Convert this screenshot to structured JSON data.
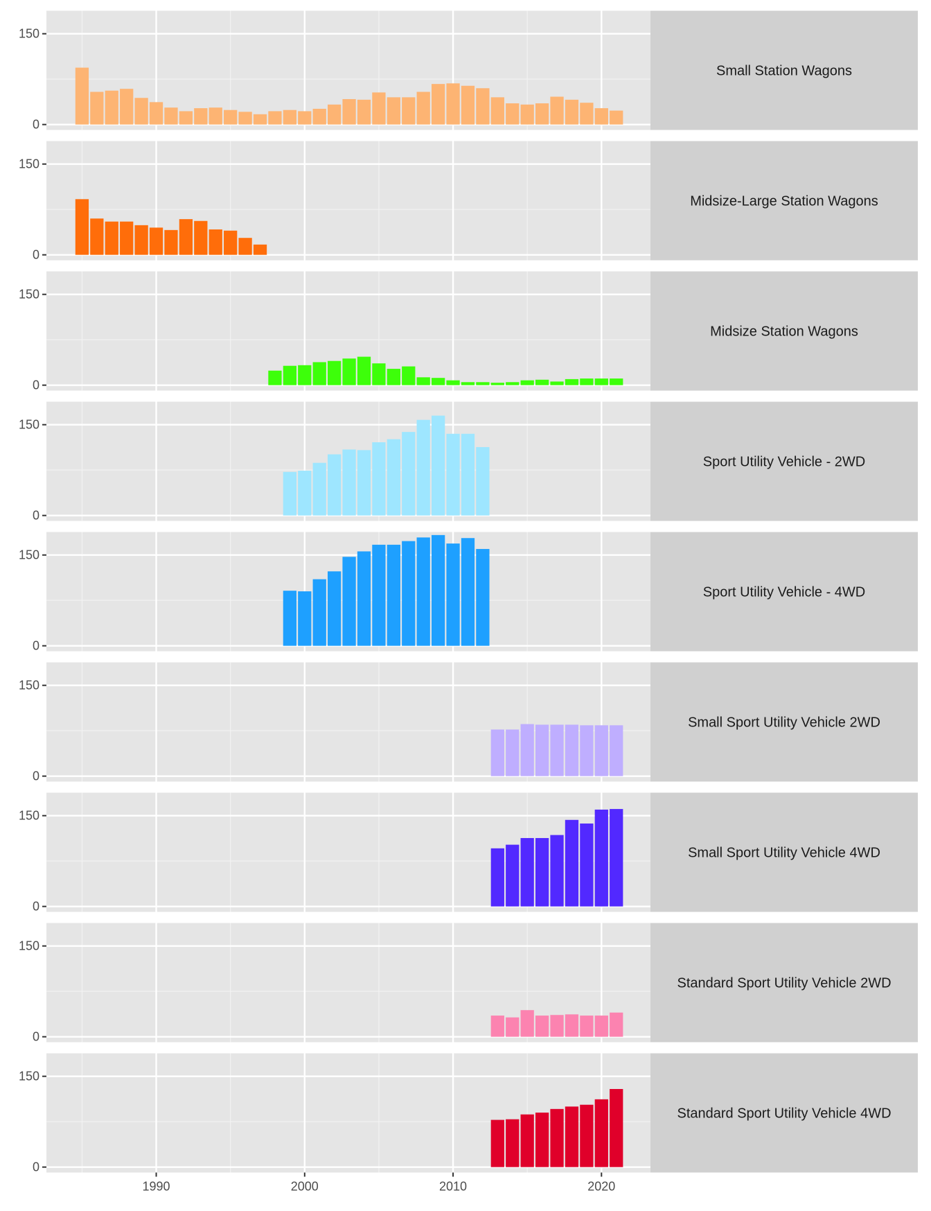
{
  "chart_data": {
    "type": "bar",
    "layout": "faceted, one panel per vehicle class, shared x axis",
    "xlim": [
      1982.6,
      2023.3
    ],
    "ylim": [
      -9,
      188
    ],
    "x_ticks": [
      1990,
      2000,
      2010,
      2020
    ],
    "y_ticks": [
      0,
      150
    ],
    "grid": true,
    "panels": [
      {
        "name": "Small Station Wagons",
        "color": "#FDB473",
        "start": 1985,
        "values": [
          94,
          54,
          56,
          59,
          44,
          37,
          28,
          22,
          27,
          28,
          24,
          21,
          17,
          22,
          24,
          22,
          26,
          33,
          42,
          41,
          53,
          45,
          45,
          54,
          67,
          68,
          64,
          60,
          45,
          35,
          33,
          35,
          46,
          41,
          36,
          27,
          23
        ]
      },
      {
        "name": "Midsize-Large Station Wagons",
        "color": "#FF6D0A",
        "start": 1985,
        "values": [
          92,
          60,
          55,
          55,
          49,
          45,
          41,
          59,
          56,
          42,
          40,
          28,
          17
        ]
      },
      {
        "name": "Midsize Station Wagons",
        "color": "#3DFF0A",
        "start": 1998,
        "values": [
          24,
          32,
          33,
          38,
          40,
          44,
          47,
          36,
          27,
          31,
          13,
          12,
          8,
          5,
          5,
          4,
          5,
          8,
          9,
          6,
          10,
          11,
          11,
          11
        ]
      },
      {
        "name": "Sport Utility Vehicle - 2WD",
        "color": "#9EE6FF",
        "start": 1999,
        "values": [
          72,
          74,
          87,
          101,
          109,
          108,
          121,
          126,
          138,
          158,
          165,
          135,
          135,
          113
        ]
      },
      {
        "name": "Sport Utility Vehicle - 4WD",
        "color": "#1EA0FF",
        "start": 1999,
        "values": [
          91,
          90,
          110,
          123,
          147,
          156,
          167,
          167,
          173,
          179,
          183,
          169,
          178,
          160
        ]
      },
      {
        "name": "Small Sport Utility Vehicle 2WD",
        "color": "#BFAEFF",
        "start": 2013,
        "values": [
          77,
          77,
          86,
          85,
          85,
          85,
          84,
          84,
          84
        ]
      },
      {
        "name": "Small Sport Utility Vehicle 4WD",
        "color": "#5229FF",
        "start": 2013,
        "values": [
          96,
          102,
          113,
          113,
          118,
          143,
          137,
          160,
          161
        ]
      },
      {
        "name": "Standard Sport Utility Vehicle 2WD",
        "color": "#FC83B0",
        "start": 2013,
        "values": [
          35,
          32,
          44,
          35,
          36,
          37,
          35,
          35,
          40
        ]
      },
      {
        "name": "Standard Sport Utility Vehicle 4WD",
        "color": "#E0002A",
        "start": 2013,
        "values": [
          78,
          79,
          87,
          90,
          96,
          100,
          103,
          112,
          129
        ]
      }
    ]
  }
}
